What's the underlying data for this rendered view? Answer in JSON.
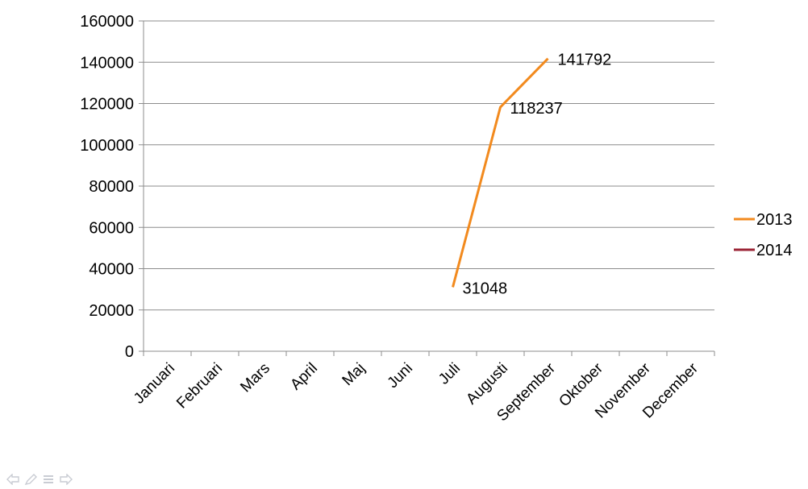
{
  "chart_data": {
    "type": "line",
    "categories": [
      "Januari",
      "Februari",
      "Mars",
      "April",
      "Maj",
      "Juni",
      "Juli",
      "Augusti",
      "September",
      "Oktober",
      "November",
      "December"
    ],
    "series": [
      {
        "name": "2013",
        "color": "#F28A1E",
        "values": [
          null,
          null,
          null,
          null,
          null,
          null,
          31048,
          118237,
          141792,
          null,
          null,
          null
        ],
        "data_labels": [
          "",
          "",
          "",
          "",
          "",
          "",
          "31048",
          "118237",
          "141792",
          "",
          "",
          ""
        ]
      },
      {
        "name": "2014",
        "color": "#9B2335",
        "values": [
          null,
          null,
          null,
          null,
          null,
          null,
          null,
          null,
          null,
          null,
          null,
          null
        ],
        "data_labels": [
          "",
          "",
          "",
          "",
          "",
          "",
          "",
          "",
          "",
          "",
          "",
          ""
        ]
      }
    ],
    "ylim": [
      0,
      160000
    ],
    "yticks": [
      0,
      20000,
      40000,
      60000,
      80000,
      100000,
      120000,
      140000,
      160000
    ],
    "ytick_labels": [
      "0",
      "20000",
      "40000",
      "60000",
      "80000",
      "100000",
      "120000",
      "140000",
      "160000"
    ],
    "grid": true,
    "legend": "right",
    "title": "",
    "xlabel": "",
    "ylabel": ""
  },
  "slide_nav": {
    "icons": [
      "prev-arrow-icon",
      "pen-icon",
      "menu-icon",
      "next-arrow-icon"
    ]
  }
}
